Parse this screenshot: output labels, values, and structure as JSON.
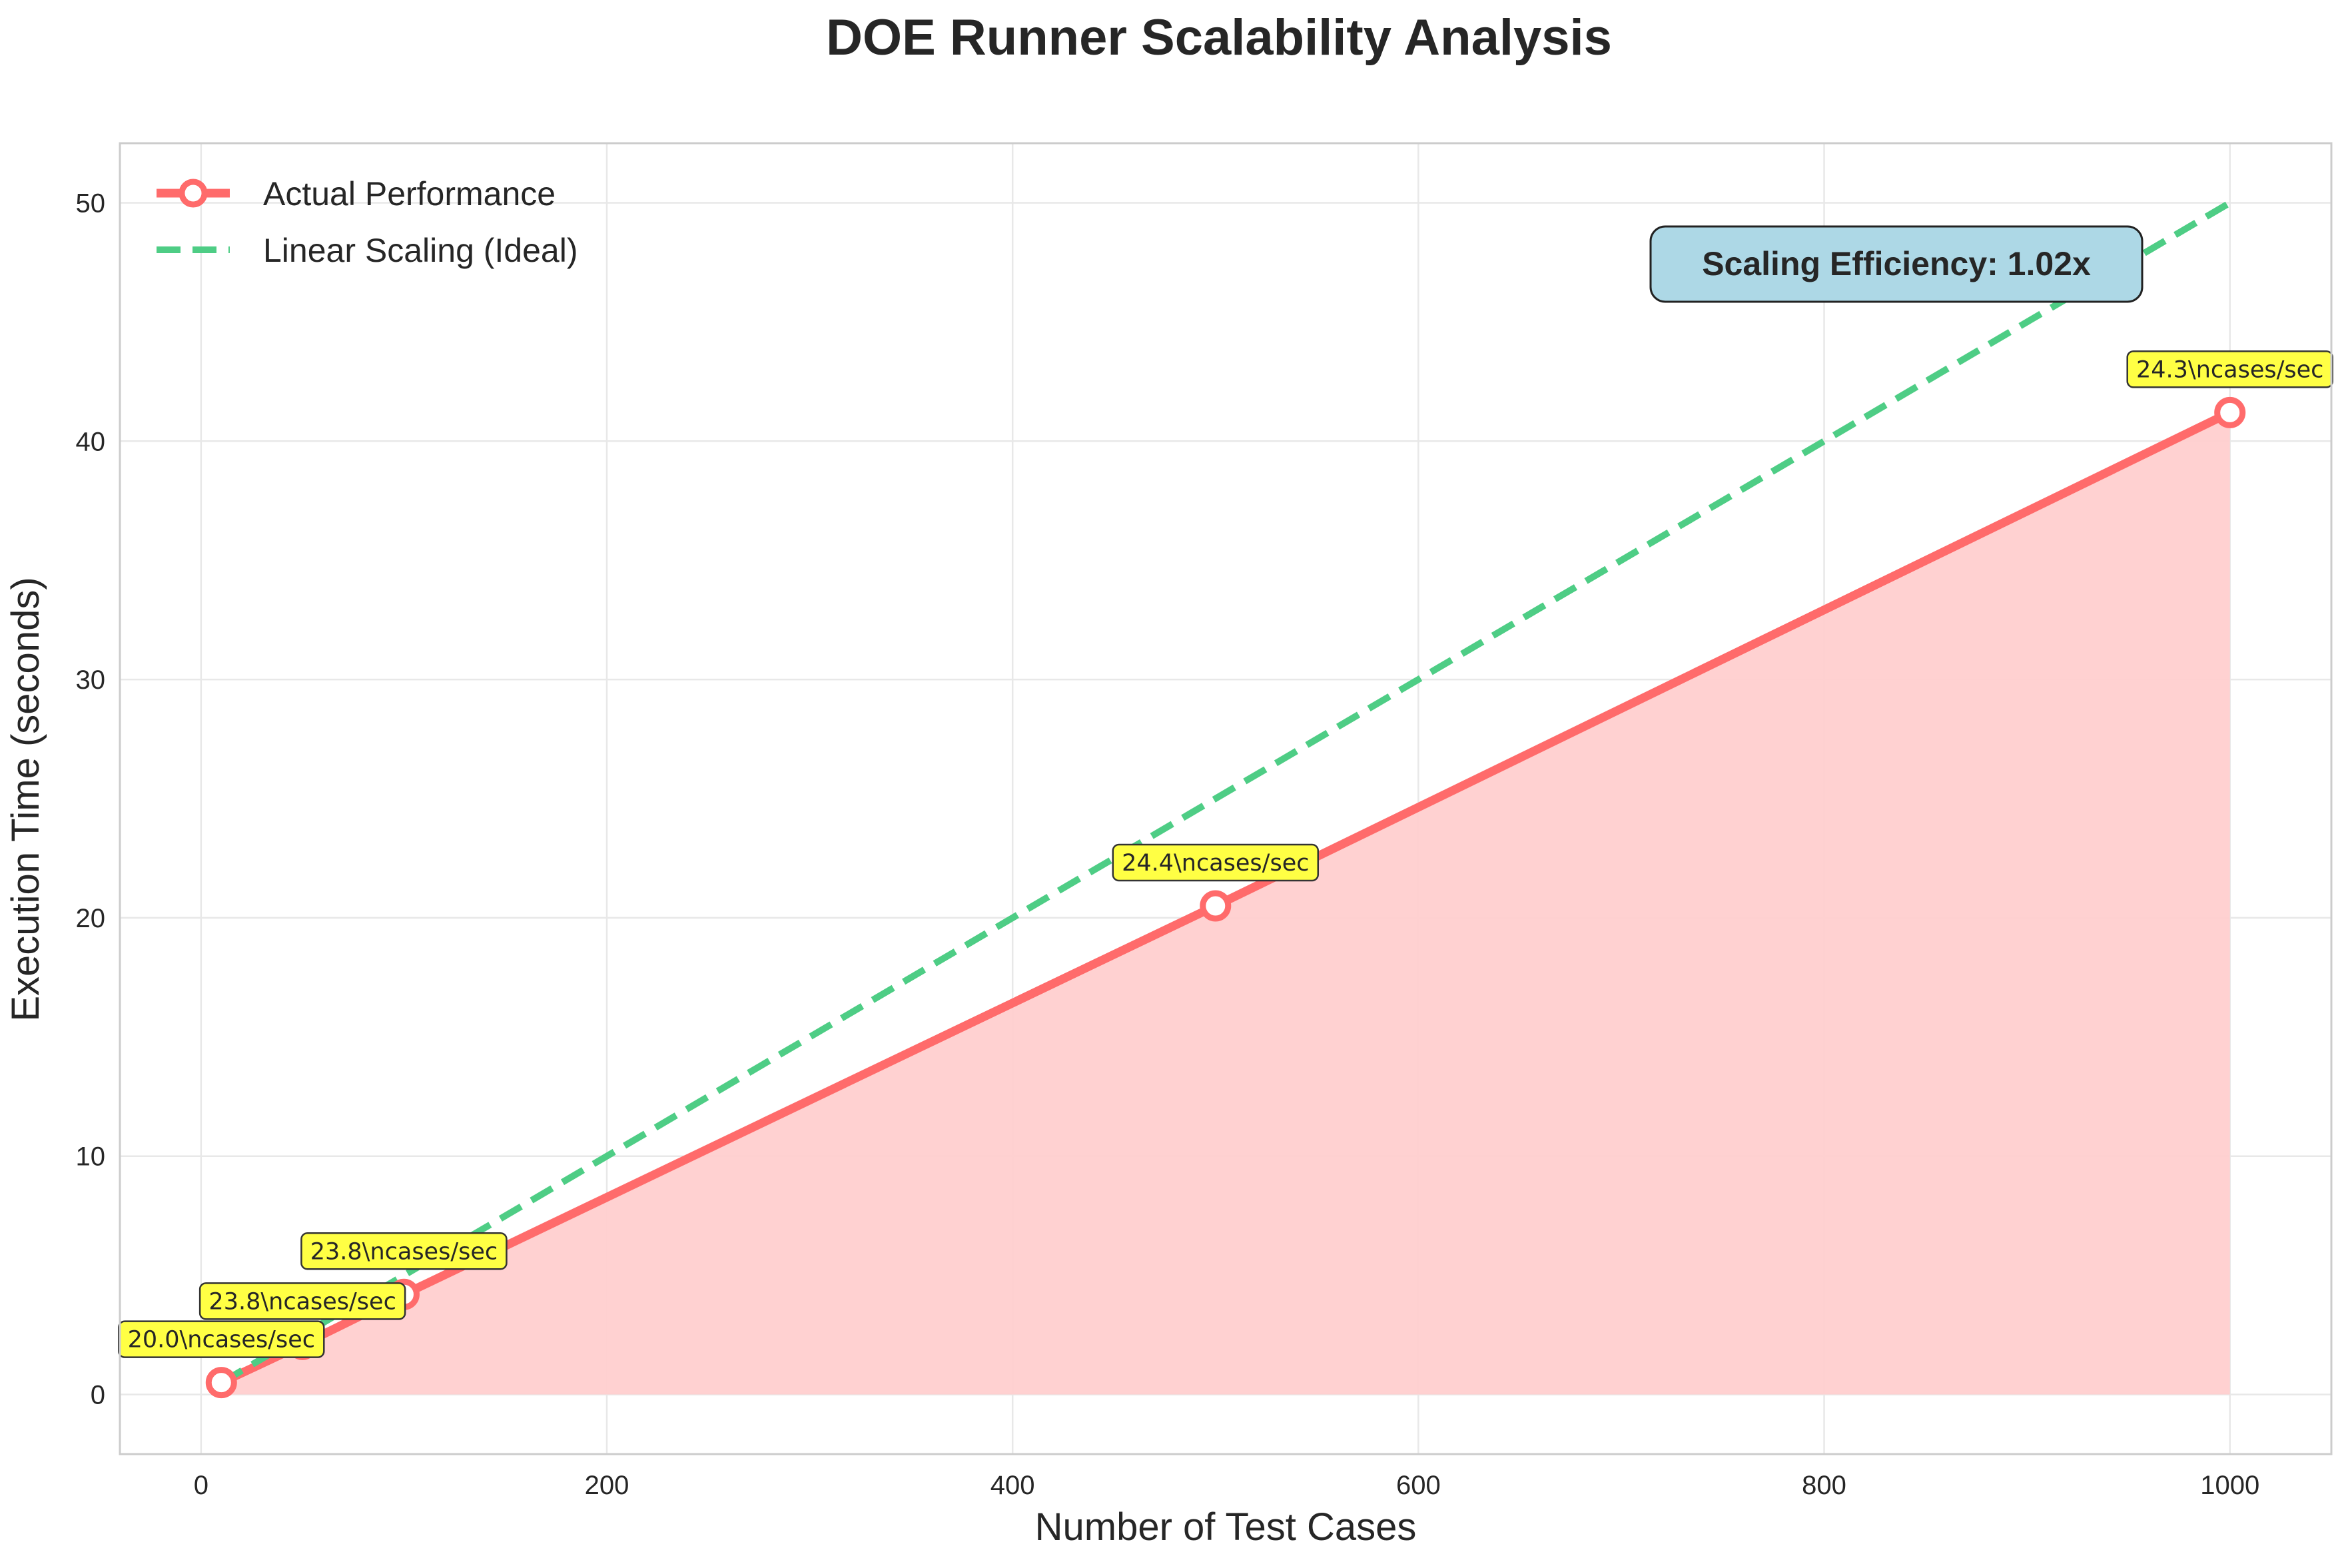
{
  "chart_data": {
    "type": "line",
    "title": "DOE Runner Scalability Analysis",
    "xlabel": "Number of Test Cases",
    "ylabel": "Execution Time (seconds)",
    "xlim": [
      -40,
      1050
    ],
    "ylim": [
      -2.5,
      52.5
    ],
    "xticks": [
      0,
      200,
      400,
      600,
      800,
      1000
    ],
    "yticks": [
      0,
      10,
      20,
      30,
      40,
      50
    ],
    "grid": true,
    "legend_position": "top-left",
    "series": [
      {
        "name": "Actual Performance",
        "style": "solid line with hollow circle markers, area fill",
        "color": "#ff6b6b",
        "x": [
          10,
          50,
          100,
          500,
          1000
        ],
        "y": [
          0.5,
          2.1,
          4.2,
          20.5,
          41.2
        ]
      },
      {
        "name": "Linear Scaling (Ideal)",
        "style": "dashed line",
        "color": "#4ecd85",
        "x": [
          10,
          1000
        ],
        "y": [
          0.5,
          50
        ]
      }
    ],
    "annotations": [
      {
        "x": 10,
        "y": 0.5,
        "text": "20.0\\ncases/sec"
      },
      {
        "x": 50,
        "y": 2.1,
        "text": "23.8\\ncases/sec"
      },
      {
        "x": 100,
        "y": 4.2,
        "text": "23.8\\ncases/sec"
      },
      {
        "x": 500,
        "y": 20.5,
        "text": "24.4\\ncases/sec"
      },
      {
        "x": 1000,
        "y": 41.2,
        "text": "24.3\\ncases/sec"
      }
    ],
    "efficiency_label": "Scaling Efficiency: 1.02x",
    "colors": {
      "actual": "#ff6b6b",
      "fill": "#ffcfcf",
      "ideal": "#4ecd85",
      "annotation_bg": "#ffff44",
      "efficiency_bg": "#add8e6"
    }
  }
}
